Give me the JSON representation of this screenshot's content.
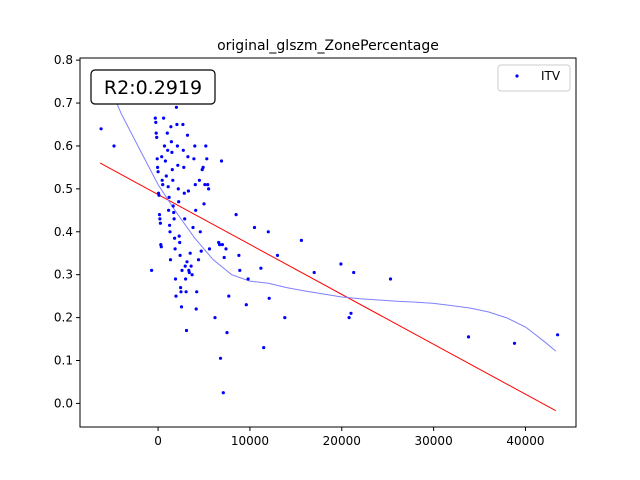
{
  "chart_data": {
    "type": "scatter",
    "title": "original_glszm_ZonePercentage",
    "xlabel": "",
    "ylabel": "",
    "xlim": [
      -8500,
      45500
    ],
    "ylim": [
      -0.055,
      0.805
    ],
    "xticks": [
      0,
      10000,
      20000,
      30000,
      40000
    ],
    "yticks": [
      0.0,
      0.1,
      0.2,
      0.3,
      0.4,
      0.5,
      0.6,
      0.7,
      0.8
    ],
    "xtick_labels": [
      "0",
      "10000",
      "20000",
      "30000",
      "40000"
    ],
    "ytick_labels": [
      "0.0",
      "0.1",
      "0.2",
      "0.3",
      "0.4",
      "0.5",
      "0.6",
      "0.7",
      "0.8"
    ],
    "annotation": "R2:0.2919",
    "legend": {
      "position": "top-right",
      "entries": [
        {
          "label": "ITV",
          "color": "#0000ff"
        }
      ]
    },
    "grid": false,
    "series": [
      {
        "name": "ITV",
        "kind": "scatter",
        "color": "#0000ff",
        "points": [
          [
            -6200,
            0.64
          ],
          [
            -4800,
            0.6
          ],
          [
            -700,
            0.31
          ],
          [
            -300,
            0.665
          ],
          [
            -250,
            0.655
          ],
          [
            -200,
            0.63
          ],
          [
            -150,
            0.62
          ],
          [
            -100,
            0.57
          ],
          [
            -50,
            0.55
          ],
          [
            0,
            0.54
          ],
          [
            50,
            0.49
          ],
          [
            100,
            0.485
          ],
          [
            150,
            0.44
          ],
          [
            200,
            0.43
          ],
          [
            250,
            0.42
          ],
          [
            300,
            0.37
          ],
          [
            350,
            0.365
          ],
          [
            400,
            0.575
          ],
          [
            450,
            0.52
          ],
          [
            500,
            0.51
          ],
          [
            600,
            0.665
          ],
          [
            700,
            0.6
          ],
          [
            800,
            0.565
          ],
          [
            900,
            0.53
          ],
          [
            1000,
            0.63
          ],
          [
            1050,
            0.59
          ],
          [
            1100,
            0.505
          ],
          [
            1150,
            0.45
          ],
          [
            1200,
            0.48
          ],
          [
            1250,
            0.415
          ],
          [
            1300,
            0.4
          ],
          [
            1350,
            0.335
          ],
          [
            1400,
            0.645
          ],
          [
            1450,
            0.61
          ],
          [
            1500,
            0.585
          ],
          [
            1550,
            0.545
          ],
          [
            1600,
            0.52
          ],
          [
            1650,
            0.46
          ],
          [
            1700,
            0.445
          ],
          [
            1750,
            0.43
          ],
          [
            1800,
            0.385
          ],
          [
            1850,
            0.36
          ],
          [
            1900,
            0.29
          ],
          [
            1950,
            0.25
          ],
          [
            2000,
            0.69
          ],
          [
            2050,
            0.65
          ],
          [
            2100,
            0.6
          ],
          [
            2150,
            0.555
          ],
          [
            2200,
            0.5
          ],
          [
            2250,
            0.47
          ],
          [
            2300,
            0.39
          ],
          [
            2350,
            0.375
          ],
          [
            2400,
            0.345
          ],
          [
            2450,
            0.27
          ],
          [
            2500,
            0.26
          ],
          [
            2550,
            0.225
          ],
          [
            2600,
            0.31
          ],
          [
            2700,
            0.65
          ],
          [
            2750,
            0.59
          ],
          [
            2800,
            0.55
          ],
          [
            2850,
            0.49
          ],
          [
            2900,
            0.43
          ],
          [
            2950,
            0.32
          ],
          [
            3000,
            0.29
          ],
          [
            3050,
            0.26
          ],
          [
            3100,
            0.17
          ],
          [
            3150,
            0.33
          ],
          [
            3200,
            0.625
          ],
          [
            3250,
            0.575
          ],
          [
            3300,
            0.495
          ],
          [
            3350,
            0.31
          ],
          [
            3400,
            0.305
          ],
          [
            3500,
            0.35
          ],
          [
            3600,
            0.32
          ],
          [
            3700,
            0.3
          ],
          [
            3800,
            0.41
          ],
          [
            3900,
            0.57
          ],
          [
            4000,
            0.6
          ],
          [
            4050,
            0.51
          ],
          [
            4100,
            0.45
          ],
          [
            4150,
            0.22
          ],
          [
            4200,
            0.26
          ],
          [
            4400,
            0.335
          ],
          [
            4500,
            0.52
          ],
          [
            4600,
            0.4
          ],
          [
            4700,
            0.355
          ],
          [
            4800,
            0.545
          ],
          [
            4900,
            0.55
          ],
          [
            5000,
            0.465
          ],
          [
            5100,
            0.51
          ],
          [
            5200,
            0.6
          ],
          [
            5300,
            0.57
          ],
          [
            5400,
            0.51
          ],
          [
            5500,
            0.5
          ],
          [
            5600,
            0.36
          ],
          [
            6200,
            0.2
          ],
          [
            6600,
            0.375
          ],
          [
            6700,
            0.37
          ],
          [
            6800,
            0.105
          ],
          [
            6900,
            0.565
          ],
          [
            7000,
            0.37
          ],
          [
            7100,
            0.025
          ],
          [
            7200,
            0.34
          ],
          [
            7400,
            0.36
          ],
          [
            7500,
            0.165
          ],
          [
            7700,
            0.25
          ],
          [
            8500,
            0.44
          ],
          [
            8800,
            0.345
          ],
          [
            8900,
            0.31
          ],
          [
            9600,
            0.23
          ],
          [
            9800,
            0.29
          ],
          [
            10500,
            0.41
          ],
          [
            11200,
            0.315
          ],
          [
            11500,
            0.13
          ],
          [
            12000,
            0.4
          ],
          [
            12100,
            0.245
          ],
          [
            13000,
            0.345
          ],
          [
            13800,
            0.2
          ],
          [
            15600,
            0.38
          ],
          [
            17000,
            0.305
          ],
          [
            19900,
            0.325
          ],
          [
            20800,
            0.2
          ],
          [
            21000,
            0.21
          ],
          [
            21300,
            0.305
          ],
          [
            25300,
            0.29
          ],
          [
            33800,
            0.155
          ],
          [
            38800,
            0.14
          ],
          [
            43500,
            0.16
          ]
        ]
      },
      {
        "name": "",
        "kind": "line",
        "color": "#ff0000",
        "points": [
          [
            -6300,
            0.56
          ],
          [
            43300,
            -0.017
          ]
        ]
      },
      {
        "name": "",
        "kind": "line",
        "color": "#7f7fff",
        "points": [
          [
            -4700,
            0.71
          ],
          [
            -4000,
            0.675
          ],
          [
            -2000,
            0.592
          ],
          [
            0,
            0.51
          ],
          [
            2000,
            0.445
          ],
          [
            4000,
            0.385
          ],
          [
            6000,
            0.335
          ],
          [
            8000,
            0.3
          ],
          [
            10000,
            0.285
          ],
          [
            12000,
            0.28
          ],
          [
            14000,
            0.27
          ],
          [
            16000,
            0.262
          ],
          [
            18000,
            0.255
          ],
          [
            20000,
            0.248
          ],
          [
            22000,
            0.244
          ],
          [
            24000,
            0.241
          ],
          [
            26000,
            0.238
          ],
          [
            28000,
            0.236
          ],
          [
            30000,
            0.233
          ],
          [
            32000,
            0.228
          ],
          [
            34000,
            0.222
          ],
          [
            36000,
            0.213
          ],
          [
            38000,
            0.199
          ],
          [
            40000,
            0.178
          ],
          [
            42000,
            0.145
          ],
          [
            43300,
            0.122
          ]
        ]
      }
    ]
  }
}
